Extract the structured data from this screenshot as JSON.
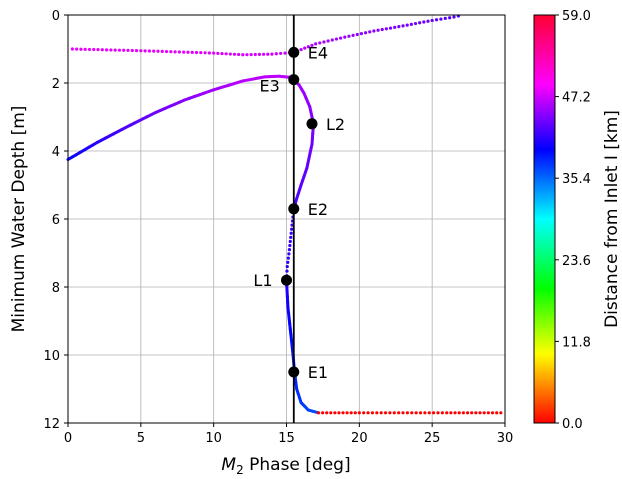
{
  "chart_data": {
    "type": "scatter",
    "xlabel_main": "M",
    "xlabel_sub": "2",
    "xlabel_rest": " Phase [deg]",
    "ylabel": "Minimum Water Depth [m]",
    "xlim": [
      0,
      30
    ],
    "ylim": [
      12,
      0
    ],
    "y_inverted": true,
    "grid": true,
    "x_ticks": [
      "0",
      "5",
      "10",
      "15",
      "20",
      "25",
      "30"
    ],
    "y_ticks": [
      "0",
      "2",
      "4",
      "6",
      "8",
      "10",
      "12"
    ],
    "vertical_line_x": 15.5,
    "colorbar": {
      "label": "Distance from Inlet I [km]",
      "ticks": [
        "0.0",
        "11.8",
        "23.6",
        "35.4",
        "47.2",
        "59.0"
      ],
      "range": [
        0.0,
        59.0
      ],
      "colormap": "hsv"
    },
    "series": [
      {
        "style": "dotted",
        "x": [
          0.3,
          5,
          10,
          12,
          14,
          15.5
        ],
        "y": [
          1.0,
          1.05,
          1.12,
          1.17,
          1.15,
          1.1
        ],
        "d": [
          50.5,
          50.3,
          50.0,
          49.8,
          49.4,
          48.8
        ]
      },
      {
        "style": "dotted",
        "x": [
          15.5,
          17,
          19,
          21,
          23,
          25,
          26.5,
          27.1
        ],
        "y": [
          1.1,
          0.85,
          0.65,
          0.47,
          0.32,
          0.16,
          0.06,
          0.0
        ],
        "d": [
          48.8,
          48.0,
          47.2,
          46.5,
          45.8,
          45.0,
          44.4,
          44.0
        ]
      },
      {
        "style": "solid",
        "x": [
          0,
          2,
          4,
          6,
          8,
          10,
          12,
          13.5,
          14.5,
          15.2,
          15.5,
          15.85
        ],
        "y": [
          4.25,
          3.75,
          3.3,
          2.87,
          2.5,
          2.2,
          1.94,
          1.82,
          1.8,
          1.83,
          1.92,
          2.05
        ],
        "d": [
          41.0,
          42.5,
          44.0,
          45.3,
          46.4,
          47.5,
          48.3,
          48.6,
          48.5,
          48.3,
          48.0,
          47.6
        ]
      },
      {
        "style": "solid",
        "x": [
          15.85,
          16.2,
          16.6,
          16.85,
          16.75,
          16.4,
          16.0,
          15.7,
          15.5
        ],
        "y": [
          2.05,
          2.3,
          2.7,
          3.2,
          3.8,
          4.5,
          5.0,
          5.4,
          5.7
        ],
        "d": [
          47.6,
          47.2,
          46.7,
          46.1,
          45.5,
          45.0,
          44.6,
          44.2,
          43.9
        ]
      },
      {
        "style": "dotted",
        "x": [
          15.5,
          15.35,
          15.2,
          15.05,
          15.0
        ],
        "y": [
          5.7,
          6.3,
          6.9,
          7.4,
          7.8
        ],
        "d": [
          43.9,
          43.5,
          43.1,
          42.7,
          42.4
        ]
      },
      {
        "style": "solid",
        "x": [
          15.0,
          15.1,
          15.3,
          15.45,
          15.55,
          15.7,
          16.0,
          16.5,
          17.2
        ],
        "y": [
          7.8,
          8.6,
          9.4,
          10.0,
          10.5,
          11.0,
          11.4,
          11.62,
          11.7
        ],
        "d": [
          42.4,
          41.6,
          40.8,
          40.3,
          39.8,
          39.3,
          38.9,
          38.4,
          38.0
        ]
      },
      {
        "style": "dotted",
        "x": [
          17.2,
          20,
          23,
          26,
          30
        ],
        "y": [
          11.7,
          11.7,
          11.7,
          11.7,
          11.7
        ],
        "d": [
          0.0,
          0.0,
          0.0,
          0.0,
          0.0
        ]
      }
    ],
    "points": [
      {
        "label": "E4",
        "x": 15.5,
        "y": 1.1,
        "pos": "right"
      },
      {
        "label": "E3",
        "x": 15.5,
        "y": 1.9,
        "pos": "left"
      },
      {
        "label": "L2",
        "x": 16.75,
        "y": 3.2,
        "pos": "right"
      },
      {
        "label": "E2",
        "x": 15.5,
        "y": 5.7,
        "pos": "right"
      },
      {
        "label": "L1",
        "x": 15.0,
        "y": 7.8,
        "pos": "left"
      },
      {
        "label": "E1",
        "x": 15.5,
        "y": 10.5,
        "pos": "right"
      }
    ]
  }
}
